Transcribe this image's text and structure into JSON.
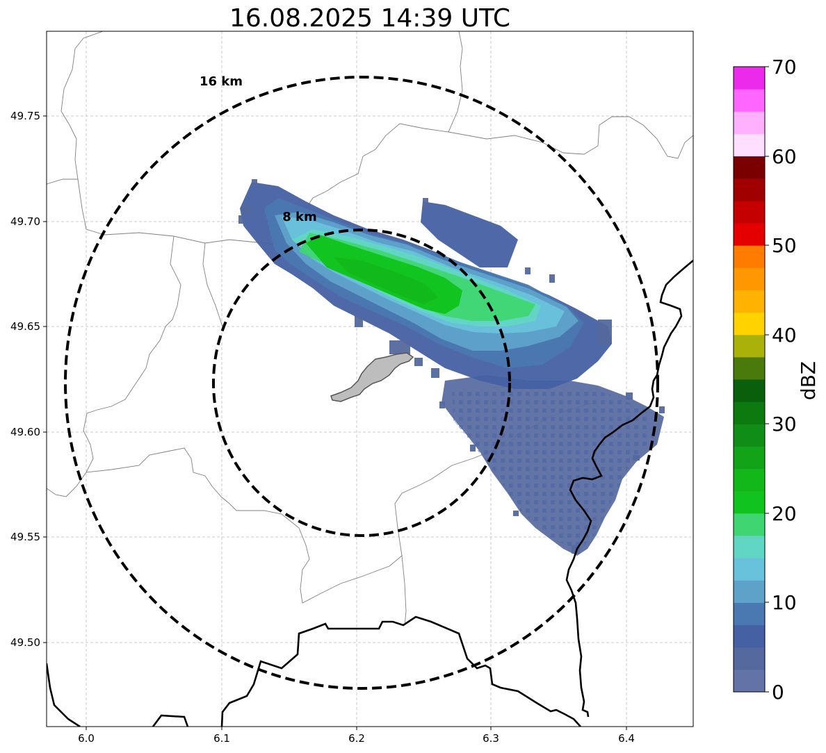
{
  "title": "16.08.2025 14:39 UTC",
  "map": {
    "xlim": [
      5.97,
      6.45
    ],
    "ylim": [
      49.46,
      49.79
    ],
    "x_ticks": [
      "6.0",
      "6.1",
      "6.2",
      "6.3",
      "6.4"
    ],
    "y_ticks": [
      "49.75",
      "49.70",
      "49.65",
      "49.60",
      "49.55",
      "49.50"
    ],
    "grid": true,
    "range_rings": [
      {
        "label": "8 km",
        "radius_km": 8
      },
      {
        "label": "16 km",
        "radius_km": 16
      }
    ],
    "radar_site_lon": 6.205,
    "radar_site_lat": 49.623
  },
  "colorbar": {
    "label": "dBZ",
    "ticks": [
      "70",
      "60",
      "50",
      "40",
      "30",
      "20",
      "10",
      "0"
    ],
    "range": [
      0,
      70
    ],
    "colors": [
      "#6373a8",
      "#55699e",
      "#4560a3",
      "#4a78b0",
      "#5ea2ca",
      "#68c2db",
      "#62d6c4",
      "#3fd672",
      "#10c31e",
      "#12b81a",
      "#12a318",
      "#108d16",
      "#0c7a0e",
      "#0a5f0c",
      "#4a7a0c",
      "#aab20a",
      "#ffd200",
      "#ffb300",
      "#ff9800",
      "#ff7c00",
      "#e40000",
      "#c40000",
      "#a00000",
      "#7a0000",
      "#ffdfff",
      "#ffb0ff",
      "#ff66ff",
      "#ec2aec"
    ]
  },
  "dbz_palette": {
    "c1": "#55699e",
    "c2": "#4560a3",
    "c3": "#4a78b0",
    "c4": "#5ea2ca",
    "c5": "#68c2db",
    "c6": "#62d6c4",
    "c7": "#3fd672",
    "c8": "#10c31e"
  }
}
